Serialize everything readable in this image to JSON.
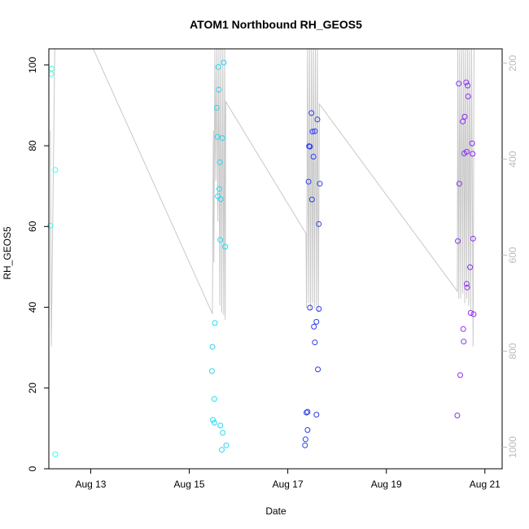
{
  "chart_data": {
    "type": "scatter",
    "title": "ATOM1 Northbound RH_GEOS5",
    "xlabel": "Date",
    "ylabel": "RH_GEOS5",
    "x_unit": "days in August",
    "xlim": [
      12.15,
      21.35
    ],
    "ylim": [
      0,
      104
    ],
    "x_ticks": [
      {
        "value": 13,
        "label": "Aug 13"
      },
      {
        "value": 15,
        "label": "Aug 15"
      },
      {
        "value": 17,
        "label": "Aug 17"
      },
      {
        "value": 19,
        "label": "Aug 19"
      },
      {
        "value": 21,
        "label": "Aug 21"
      }
    ],
    "y_ticks": [
      0,
      20,
      40,
      60,
      80,
      100
    ],
    "secondary_axis": {
      "side": "right",
      "reversed": true,
      "range": [
        1045,
        170
      ],
      "ticks": [
        200,
        400,
        600,
        800,
        1000
      ],
      "color": "#bbbbbb"
    },
    "points": [
      {
        "x": 12.18,
        "y": 60.2,
        "color": "#40ffe0"
      },
      {
        "x": 12.2,
        "y": 97.8,
        "color": "#40ffe0"
      },
      {
        "x": 12.21,
        "y": 99.1,
        "color": "#40ffe0"
      },
      {
        "x": 12.28,
        "y": 74.0,
        "color": "#40ffe0"
      },
      {
        "x": 12.28,
        "y": 3.6,
        "color": "#40ffe0"
      },
      {
        "x": 15.47,
        "y": 30.2,
        "color": "#29d8f0"
      },
      {
        "x": 15.46,
        "y": 24.2,
        "color": "#29d8f0"
      },
      {
        "x": 15.48,
        "y": 12.1,
        "color": "#29d8f0"
      },
      {
        "x": 15.51,
        "y": 11.4,
        "color": "#29d8f0"
      },
      {
        "x": 15.51,
        "y": 17.3,
        "color": "#29d8f0"
      },
      {
        "x": 15.52,
        "y": 36.1,
        "color": "#29d8f0"
      },
      {
        "x": 15.56,
        "y": 89.4,
        "color": "#29d8f0"
      },
      {
        "x": 15.57,
        "y": 82.2,
        "color": "#29d8f0"
      },
      {
        "x": 15.58,
        "y": 67.5,
        "color": "#29d8f0"
      },
      {
        "x": 15.59,
        "y": 99.5,
        "color": "#29d8f0"
      },
      {
        "x": 15.6,
        "y": 93.9,
        "color": "#29d8f0"
      },
      {
        "x": 15.61,
        "y": 69.3,
        "color": "#29d8f0"
      },
      {
        "x": 15.62,
        "y": 75.9,
        "color": "#29d8f0"
      },
      {
        "x": 15.63,
        "y": 56.7,
        "color": "#29d8f0"
      },
      {
        "x": 15.64,
        "y": 66.8,
        "color": "#29d8f0"
      },
      {
        "x": 15.63,
        "y": 10.7,
        "color": "#29d8f0"
      },
      {
        "x": 15.66,
        "y": 4.7,
        "color": "#29d8f0"
      },
      {
        "x": 15.67,
        "y": 81.9,
        "color": "#29d8f0"
      },
      {
        "x": 15.68,
        "y": 8.9,
        "color": "#29d8f0"
      },
      {
        "x": 15.7,
        "y": 100.6,
        "color": "#29d8f0"
      },
      {
        "x": 15.73,
        "y": 55.0,
        "color": "#29d8f0"
      },
      {
        "x": 15.75,
        "y": 5.8,
        "color": "#29d8f0"
      },
      {
        "x": 17.35,
        "y": 5.8,
        "color": "#2a3cf0"
      },
      {
        "x": 17.36,
        "y": 7.3,
        "color": "#2a3cf0"
      },
      {
        "x": 17.38,
        "y": 13.9,
        "color": "#2a3cf0"
      },
      {
        "x": 17.4,
        "y": 9.6,
        "color": "#2a3cf0"
      },
      {
        "x": 17.4,
        "y": 14.1,
        "color": "#2a3cf0"
      },
      {
        "x": 17.42,
        "y": 71.1,
        "color": "#2a3cf0"
      },
      {
        "x": 17.43,
        "y": 79.9,
        "color": "#2a3cf0"
      },
      {
        "x": 17.45,
        "y": 79.8,
        "color": "#2a3cf0"
      },
      {
        "x": 17.45,
        "y": 39.9,
        "color": "#2a3cf0"
      },
      {
        "x": 17.48,
        "y": 88.1,
        "color": "#2a3cf0"
      },
      {
        "x": 17.49,
        "y": 66.7,
        "color": "#2a3cf0"
      },
      {
        "x": 17.5,
        "y": 83.5,
        "color": "#2a3cf0"
      },
      {
        "x": 17.52,
        "y": 77.3,
        "color": "#2a3cf0"
      },
      {
        "x": 17.53,
        "y": 35.2,
        "color": "#2a3cf0"
      },
      {
        "x": 17.55,
        "y": 83.6,
        "color": "#2a3cf0"
      },
      {
        "x": 17.55,
        "y": 31.3,
        "color": "#2a3cf0"
      },
      {
        "x": 17.58,
        "y": 36.4,
        "color": "#2a3cf0"
      },
      {
        "x": 17.58,
        "y": 13.4,
        "color": "#2a3cf0"
      },
      {
        "x": 17.6,
        "y": 86.5,
        "color": "#2a3cf0"
      },
      {
        "x": 17.61,
        "y": 24.6,
        "color": "#2a3cf0"
      },
      {
        "x": 17.63,
        "y": 60.6,
        "color": "#2a3cf0"
      },
      {
        "x": 17.63,
        "y": 39.6,
        "color": "#2a3cf0"
      },
      {
        "x": 17.65,
        "y": 70.6,
        "color": "#2a3cf0"
      },
      {
        "x": 20.44,
        "y": 13.2,
        "color": "#8a30f0"
      },
      {
        "x": 20.45,
        "y": 56.4,
        "color": "#8a30f0"
      },
      {
        "x": 20.47,
        "y": 95.4,
        "color": "#8a30f0"
      },
      {
        "x": 20.48,
        "y": 70.6,
        "color": "#8a30f0"
      },
      {
        "x": 20.5,
        "y": 23.2,
        "color": "#8a30f0"
      },
      {
        "x": 20.55,
        "y": 86.0,
        "color": "#8a30f0"
      },
      {
        "x": 20.56,
        "y": 34.6,
        "color": "#8a30f0"
      },
      {
        "x": 20.57,
        "y": 31.5,
        "color": "#8a30f0"
      },
      {
        "x": 20.58,
        "y": 78.1,
        "color": "#8a30f0"
      },
      {
        "x": 20.59,
        "y": 87.2,
        "color": "#8a30f0"
      },
      {
        "x": 20.62,
        "y": 95.7,
        "color": "#8a30f0"
      },
      {
        "x": 20.63,
        "y": 45.8,
        "color": "#8a30f0"
      },
      {
        "x": 20.63,
        "y": 78.5,
        "color": "#8a30f0"
      },
      {
        "x": 20.65,
        "y": 94.9,
        "color": "#8a30f0"
      },
      {
        "x": 20.64,
        "y": 44.9,
        "color": "#8a30f0"
      },
      {
        "x": 20.66,
        "y": 92.2,
        "color": "#8a30f0"
      },
      {
        "x": 20.7,
        "y": 49.9,
        "color": "#8a30f0"
      },
      {
        "x": 20.71,
        "y": 38.6,
        "color": "#8a30f0"
      },
      {
        "x": 20.74,
        "y": 80.6,
        "color": "#8a30f0"
      },
      {
        "x": 20.75,
        "y": 78.0,
        "color": "#8a30f0"
      },
      {
        "x": 20.76,
        "y": 57.0,
        "color": "#8a30f0"
      },
      {
        "x": 20.77,
        "y": 38.3,
        "color": "#8a30f0"
      }
    ],
    "pressure_trace": {
      "color": "#c8c8c8",
      "points": [
        [
          12.18,
          340
        ],
        [
          12.2,
          790
        ],
        [
          12.27,
          170
        ],
        [
          12.28,
          170
        ],
        [
          12.33,
          170
        ],
        [
          13.05,
          170
        ],
        [
          15.47,
          722
        ],
        [
          15.49,
          340
        ],
        [
          15.5,
          615
        ],
        [
          15.52,
          170
        ],
        [
          15.54,
          445
        ],
        [
          15.56,
          170
        ],
        [
          15.58,
          530
        ],
        [
          15.6,
          170
        ],
        [
          15.62,
          705
        ],
        [
          15.64,
          170
        ],
        [
          15.66,
          720
        ],
        [
          15.68,
          170
        ],
        [
          15.7,
          725
        ],
        [
          15.72,
          170
        ],
        [
          15.73,
          735
        ],
        [
          15.74,
          280
        ],
        [
          17.37,
          555
        ],
        [
          17.38,
          710
        ],
        [
          17.4,
          170
        ],
        [
          17.42,
          700
        ],
        [
          17.44,
          170
        ],
        [
          17.46,
          715
        ],
        [
          17.48,
          170
        ],
        [
          17.5,
          700
        ],
        [
          17.52,
          170
        ],
        [
          17.54,
          710
        ],
        [
          17.56,
          170
        ],
        [
          17.58,
          705
        ],
        [
          17.6,
          170
        ],
        [
          17.62,
          720
        ],
        [
          17.64,
          285
        ],
        [
          20.44,
          675
        ],
        [
          20.45,
          170
        ],
        [
          20.47,
          690
        ],
        [
          20.49,
          170
        ],
        [
          20.51,
          690
        ],
        [
          20.53,
          170
        ],
        [
          20.55,
          680
        ],
        [
          20.57,
          170
        ],
        [
          20.59,
          700
        ],
        [
          20.61,
          170
        ],
        [
          20.63,
          690
        ],
        [
          20.65,
          170
        ],
        [
          20.67,
          705
        ],
        [
          20.69,
          170
        ],
        [
          20.71,
          715
        ],
        [
          20.73,
          170
        ],
        [
          20.76,
          790
        ],
        [
          20.78,
          170
        ]
      ]
    },
    "grid": false,
    "legend": "none"
  }
}
